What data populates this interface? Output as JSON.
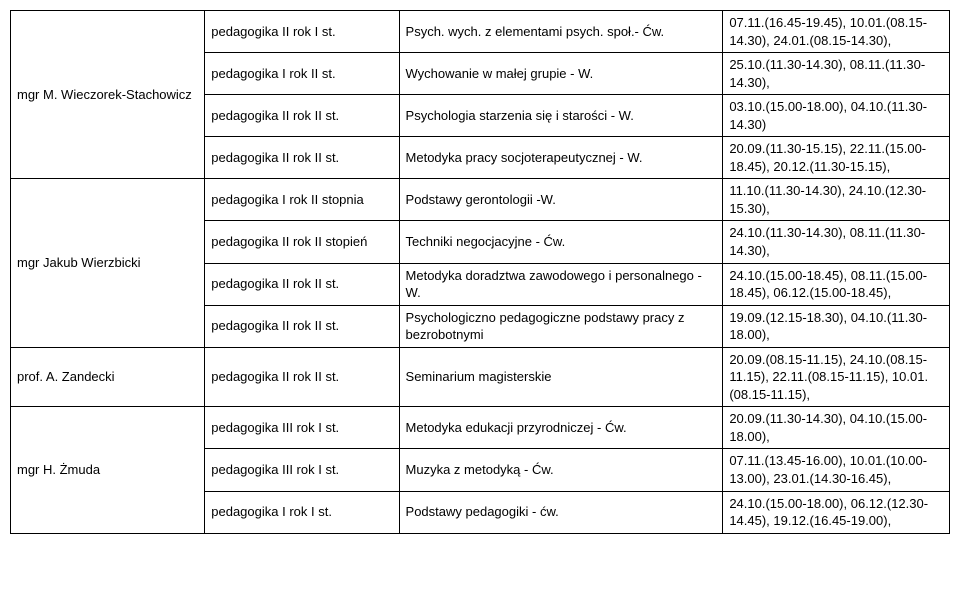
{
  "rows": [
    {
      "instructor": "mgr M. Wieczorek-Stachowicz",
      "group": "pedagogika II rok  I st.",
      "course": "Psych. wych. z elementami psych. społ.- Ćw.",
      "schedule": "07.11.(16.45-19.45), 10.01.(08.15-14.30), 24.01.(08.15-14.30),"
    },
    {
      "instructor": "",
      "group": "pedagogika I rok  II st.",
      "course": "Wychowanie w małej grupie - W.",
      "schedule": "25.10.(11.30-14.30), 08.11.(11.30-14.30),"
    },
    {
      "instructor": "",
      "group": "pedagogika II rok  II st.",
      "course": "Psychologia starzenia się i starości - W.",
      "schedule": "03.10.(15.00-18.00), 04.10.(11.30-14.30)"
    },
    {
      "instructor": "",
      "group": "pedagogika II rok  II st.",
      "course": "Metodyka pracy socjoterapeutycznej - W.",
      "schedule": "20.09.(11.30-15.15), 22.11.(15.00-18.45), 20.12.(11.30-15.15),"
    },
    {
      "instructor": "mgr Jakub Wierzbicki",
      "group": "pedagogika I rok II stopnia",
      "course": "Podstawy gerontologii -W.",
      "schedule": "11.10.(11.30-14.30), 24.10.(12.30-15.30),"
    },
    {
      "instructor": "",
      "group": "pedagogika II rok II stopień",
      "course": "Techniki negocjacyjne - Ćw.",
      "schedule": "24.10.(11.30-14.30), 08.11.(11.30-14.30),"
    },
    {
      "instructor": "",
      "group": "pedagogika II rok II st.",
      "course": "Metodyka doradztwa zawodowego i personalnego - W.",
      "schedule": "24.10.(15.00-18.45), 08.11.(15.00-18.45), 06.12.(15.00-18.45),"
    },
    {
      "instructor": "",
      "group": "pedagogika II rok II st.",
      "course": "Psychologiczno pedagogiczne podstawy pracy z bezrobotnymi",
      "schedule": "19.09.(12.15-18.30), 04.10.(11.30-18.00),"
    },
    {
      "instructor": "prof. A. Zandecki",
      "group": "pedagogika II rok II st.",
      "course": "Seminarium magisterskie",
      "schedule": "20.09.(08.15-11.15), 24.10.(08.15-11.15), 22.11.(08.15-11.15), 10.01.(08.15-11.15),"
    },
    {
      "instructor": "mgr H. Żmuda",
      "group": "pedagogika III rok  I st.",
      "course": "Metodyka edukacji przyrodniczej - Ćw.",
      "schedule": "20.09.(11.30-14.30), 04.10.(15.00-18.00),"
    },
    {
      "instructor": "",
      "group": "pedagogika III rok I st.",
      "course": "Muzyka z metodyką - Ćw.",
      "schedule": "07.11.(13.45-16.00), 10.01.(10.00-13.00), 23.01.(14.30-16.45),"
    },
    {
      "instructor": "",
      "group": "pedagogika I rok  I st.",
      "course": "Podstawy pedagogiki - ćw.",
      "schedule": "24.10.(15.00-18.00), 06.12.(12.30-14.45), 19.12.(16.45-19.00),"
    }
  ],
  "groups": [
    {
      "span": 4,
      "start": 0
    },
    {
      "span": 4,
      "start": 4
    },
    {
      "span": 1,
      "start": 8
    },
    {
      "span": 3,
      "start": 9
    }
  ]
}
